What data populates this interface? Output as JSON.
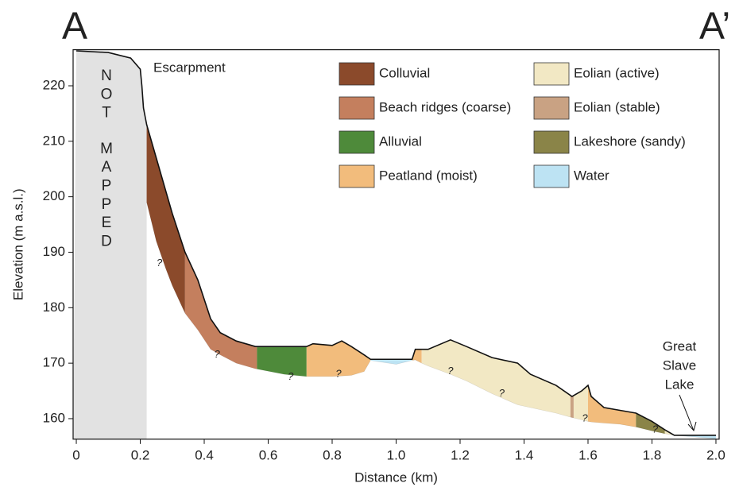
{
  "chart_data": {
    "type": "profile",
    "section_start": "A",
    "section_end": "A’",
    "xlabel": "Distance (km)",
    "ylabel": "Elevation (m a.s.l.)",
    "xlim": [
      -0.01,
      2.01
    ],
    "ylim": [
      156.3,
      226.5
    ],
    "xticks": [
      0,
      0.2,
      0.4,
      0.6,
      0.8,
      {
        "value": 1,
        "label": "1.0"
      },
      1.2,
      1.4,
      1.6,
      1.8,
      {
        "value": 2,
        "label": "2.0"
      }
    ],
    "yticks": [
      160,
      170,
      180,
      190,
      200,
      210,
      220
    ],
    "x": [
      0,
      0.1,
      0.17,
      0.2,
      0.205,
      0.21,
      0.22,
      0.25,
      0.28,
      0.3,
      0.34,
      0.38,
      0.42,
      0.45,
      0.5,
      0.56,
      0.65,
      0.72,
      0.74,
      0.8,
      0.83,
      0.86,
      0.9,
      0.92,
      1.0,
      1.05,
      1.06,
      1.08,
      1.1,
      1.17,
      1.22,
      1.3,
      1.38,
      1.42,
      1.5,
      1.55,
      1.58,
      1.6,
      1.61,
      1.65,
      1.7,
      1.75,
      1.8,
      1.84,
      1.87,
      2.0
    ],
    "surface": [
      226.3,
      226,
      225,
      223,
      220,
      216,
      213,
      207,
      201,
      197,
      190,
      185,
      178,
      175.5,
      174,
      173,
      173,
      173,
      173.5,
      173.2,
      174,
      173,
      171.5,
      170.7,
      170.7,
      170.7,
      172.5,
      172.5,
      172.5,
      174.2,
      173,
      171,
      170,
      168,
      166,
      164,
      165,
      166,
      164,
      162,
      161.5,
      161,
      159.5,
      158,
      157,
      157
    ],
    "base": [
      null,
      null,
      null,
      null,
      null,
      null,
      199,
      192,
      187,
      184,
      179,
      176,
      172.5,
      171.5,
      170,
      169,
      168,
      167.6,
      167.6,
      167.6,
      167.7,
      167.8,
      168.5,
      170.5,
      169.8,
      170.5,
      170.6,
      170,
      169.5,
      168,
      166.8,
      164.5,
      162.5,
      162,
      161,
      160.2,
      159.8,
      159.5,
      159.4,
      159.2,
      159,
      158.5,
      157.8,
      157.3,
      157,
      156.4
    ],
    "units": [
      {
        "name": "Colluvial",
        "color": "#8b4a2b",
        "ranges": [
          [
            0.22,
            0.34
          ]
        ]
      },
      {
        "name": "Beach ridges (coarse)",
        "color": "#c47f5e",
        "ranges": [
          [
            0.34,
            0.565
          ]
        ]
      },
      {
        "name": "Alluvial",
        "color": "#4e8a3a",
        "ranges": [
          [
            0.565,
            0.72
          ]
        ]
      },
      {
        "name": "Peatland (moist)",
        "color": "#f2bc7c",
        "ranges": [
          [
            0.72,
            0.92
          ],
          [
            1.05,
            1.08
          ],
          [
            1.6,
            1.75
          ]
        ]
      },
      {
        "name": "Eolian (active)",
        "color": "#f2e8c4",
        "ranges": [
          [
            1.08,
            1.545
          ],
          [
            1.555,
            1.6
          ],
          [
            1.84,
            1.87
          ]
        ]
      },
      {
        "name": "Eolian (stable)",
        "color": "#c9a283",
        "ranges": [
          [
            1.545,
            1.555
          ]
        ]
      },
      {
        "name": "Lakeshore (sandy)",
        "color": "#8a8448",
        "ranges": [
          [
            1.75,
            1.84
          ]
        ]
      },
      {
        "name": "Water",
        "color": "#bde3f3",
        "ranges": [
          [
            0.92,
            1.05
          ],
          [
            1.87,
            2.0
          ]
        ]
      }
    ],
    "not_mapped": [
      "N",
      "O",
      "T",
      "M",
      "A",
      "P",
      "P",
      "E",
      "D"
    ],
    "escarpment_label": "Escarpment",
    "lake_label": [
      "Great",
      "Slave",
      "Lake"
    ],
    "uncertain_labels": [
      "?",
      "?",
      "?",
      "?",
      "?",
      "?",
      "?",
      "?"
    ]
  }
}
